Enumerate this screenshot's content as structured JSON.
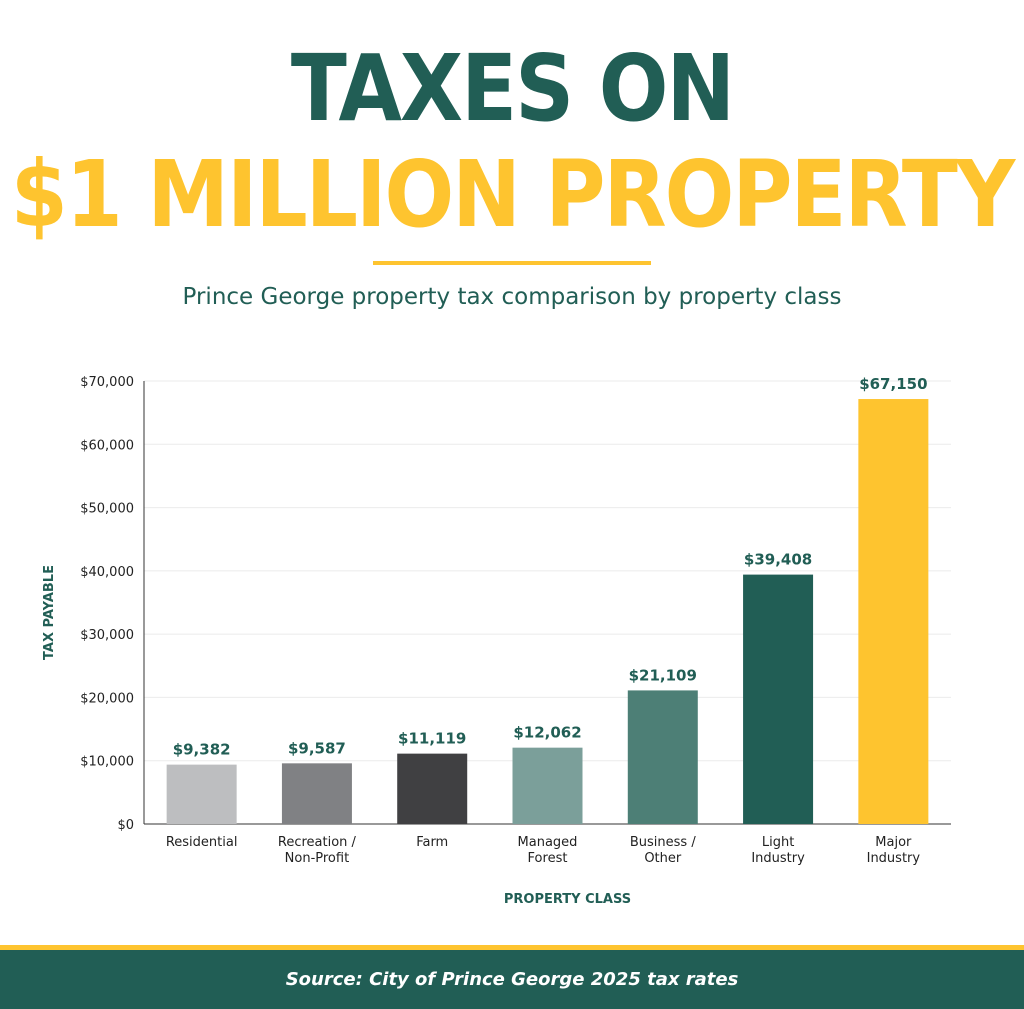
{
  "header": {
    "title_line1": "TAXES ON",
    "title_line2": "$1 MILLION PROPERTY",
    "subtitle": "Prince George property tax comparison by property class"
  },
  "colors": {
    "green": "#215e55",
    "yellow": "#fec42f",
    "white": "#ffffff"
  },
  "chart_data": {
    "type": "bar",
    "title": "",
    "xlabel": "PROPERTY CLASS",
    "ylabel": "TAX PAYABLE",
    "ylim": [
      0,
      70000
    ],
    "yticks": [
      "$0",
      "$10,000",
      "$20,000",
      "$30,000",
      "$40,000",
      "$50,000",
      "$60,000",
      "$70,000"
    ],
    "grid": true,
    "categories": [
      [
        "Residential"
      ],
      [
        "Recreation /",
        "Non-Profit"
      ],
      [
        "Farm"
      ],
      [
        "Managed",
        "Forest"
      ],
      [
        "Business /",
        "Other"
      ],
      [
        "Light",
        "Industry"
      ],
      [
        "Major",
        "Industry"
      ]
    ],
    "values": [
      9382,
      9587,
      11119,
      12062,
      21109,
      39408,
      67150
    ],
    "value_labels": [
      "$9,382",
      "$9,587",
      "$11,119",
      "$12,062",
      "$21,109",
      "$39,408",
      "$67,150"
    ],
    "bar_colors": [
      "#bdbec0",
      "#808184",
      "#404042",
      "#7b9f9a",
      "#4d7f76",
      "#215e55",
      "#fec42f"
    ]
  },
  "footer": {
    "source": "Source: City of Prince George 2025 tax rates"
  }
}
